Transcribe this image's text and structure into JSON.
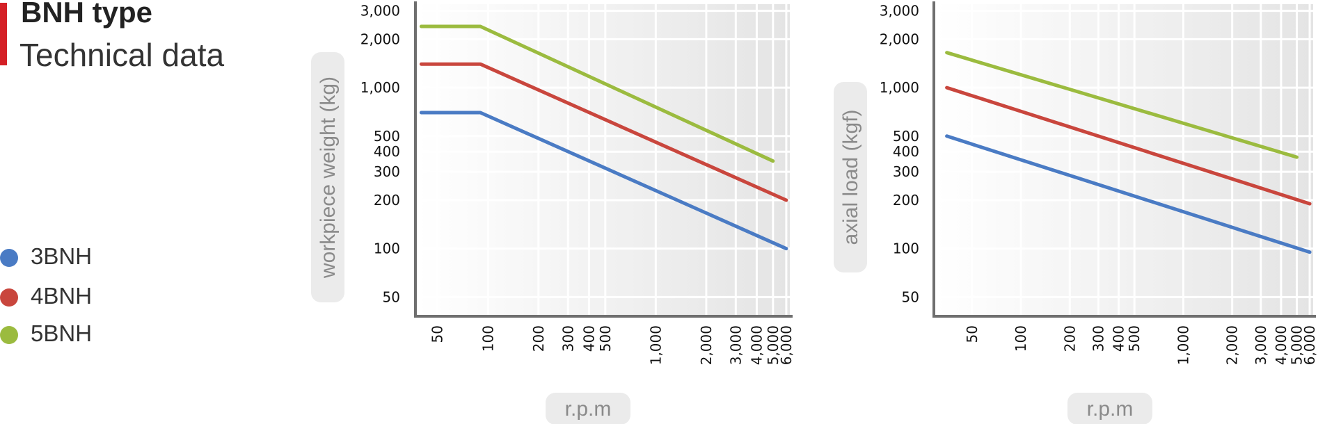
{
  "header": {
    "title": "BNH type",
    "subtitle": "Technical data"
  },
  "legend": [
    {
      "label": "3BNH",
      "color": "#4a7bc4"
    },
    {
      "label": "4BNH",
      "color": "#c9463d"
    },
    {
      "label": "5BNH",
      "color": "#9bbb3f"
    }
  ],
  "chart_data": [
    {
      "type": "line",
      "title": "",
      "xlabel": "r.p.m",
      "ylabel": "workpiece weight (kg)",
      "x_scale": "log",
      "y_scale": "log",
      "xlim": [
        38,
        6300
      ],
      "ylim": [
        38,
        3300
      ],
      "x_ticks": [
        50,
        100,
        200,
        300,
        400,
        500,
        1000,
        2000,
        3000,
        4000,
        5000,
        6000
      ],
      "x_tick_labels": [
        "50",
        "100",
        "200",
        "300",
        "400",
        "500",
        "1,000",
        "2,000",
        "3,000",
        "4,000",
        "5,000",
        "6,000"
      ],
      "y_ticks": [
        50,
        100,
        200,
        300,
        400,
        500,
        1000,
        2000,
        3000
      ],
      "y_tick_labels": [
        "50",
        "100",
        "200",
        "300",
        "400",
        "500",
        "1,000",
        "2,000",
        "3,000"
      ],
      "grid": true,
      "series": [
        {
          "name": "3BNH",
          "color": "#4a7bc4",
          "x": [
            40,
            90,
            6000
          ],
          "y": [
            700,
            700,
            100
          ]
        },
        {
          "name": "4BNH",
          "color": "#c9463d",
          "x": [
            40,
            90,
            6000
          ],
          "y": [
            1400,
            1400,
            200
          ]
        },
        {
          "name": "5BNH",
          "color": "#9bbb3f",
          "x": [
            40,
            90,
            5000
          ],
          "y": [
            2400,
            2400,
            350
          ]
        }
      ]
    },
    {
      "type": "line",
      "title": "",
      "xlabel": "r.p.m",
      "ylabel": "axial load  (kgf)",
      "x_scale": "log",
      "y_scale": "log",
      "xlim": [
        30,
        6300
      ],
      "ylim": [
        38,
        3300
      ],
      "x_ticks": [
        50,
        100,
        200,
        300,
        400,
        500,
        1000,
        2000,
        3000,
        4000,
        5000,
        6000
      ],
      "x_tick_labels": [
        "50",
        "100",
        "200",
        "300",
        "400",
        "500",
        "1,000",
        "2,000",
        "3,000",
        "4,000",
        "5,000",
        "6,000"
      ],
      "y_ticks": [
        50,
        100,
        200,
        300,
        400,
        500,
        1000,
        2000,
        3000
      ],
      "y_tick_labels": [
        "50",
        "100",
        "200",
        "300",
        "400",
        "500",
        "1,000",
        "2,000",
        "3,000"
      ],
      "grid": true,
      "series": [
        {
          "name": "3BNH",
          "color": "#4a7bc4",
          "x": [
            35,
            6000
          ],
          "y": [
            500,
            95
          ]
        },
        {
          "name": "4BNH",
          "color": "#c9463d",
          "x": [
            35,
            6000
          ],
          "y": [
            1000,
            190
          ]
        },
        {
          "name": "5BNH",
          "color": "#9bbb3f",
          "x": [
            35,
            5000
          ],
          "y": [
            1650,
            370
          ]
        }
      ]
    }
  ]
}
